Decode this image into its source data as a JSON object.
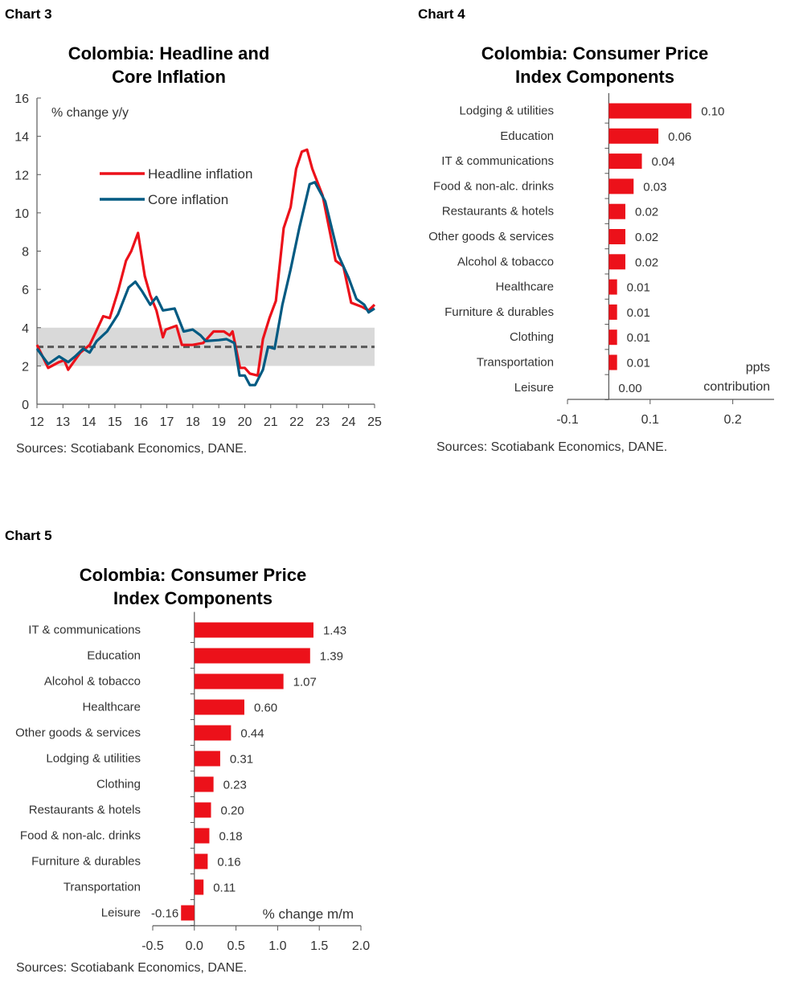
{
  "charts_labels": [
    "Chart 3",
    "Chart 4",
    "Chart 5"
  ],
  "chart_data": [
    {
      "type": "line",
      "title_line1": "Colombia: Headline and",
      "title_line2": "Core Inflation",
      "ylabel": "% change y/y",
      "ylim": [
        0,
        16
      ],
      "yticks": [
        0,
        2,
        4,
        6,
        8,
        10,
        12,
        14,
        16
      ],
      "xlim": [
        12,
        25
      ],
      "xticks": [
        12,
        13,
        14,
        15,
        16,
        17,
        18,
        19,
        20,
        21,
        22,
        23,
        24,
        25
      ],
      "target_band": [
        2,
        4
      ],
      "target_line": 3,
      "band_color": "#d9d9d9",
      "legend_placement": "upper-left inside",
      "source": "Sources: Scotiabank Economics, DANE.",
      "series": [
        {
          "name": "Headline inflation",
          "color": "#ec111a",
          "x": [
            12.0,
            12.43,
            12.85,
            13.05,
            13.2,
            13.67,
            14.03,
            14.24,
            14.55,
            14.8,
            15.12,
            15.43,
            15.63,
            15.89,
            16.15,
            16.36,
            16.6,
            16.85,
            16.96,
            17.37,
            17.58,
            17.99,
            18.4,
            18.8,
            19.2,
            19.42,
            19.53,
            19.82,
            20.0,
            20.2,
            20.5,
            20.7,
            20.95,
            21.2,
            21.5,
            21.77,
            21.98,
            22.2,
            22.4,
            22.6,
            23.0,
            23.5,
            23.8,
            24.1,
            24.5,
            24.77,
            25.0
          ],
          "y": [
            3.1,
            1.9,
            2.2,
            2.3,
            1.8,
            2.7,
            3.1,
            3.7,
            4.6,
            4.5,
            5.9,
            7.5,
            8.0,
            8.95,
            6.7,
            5.7,
            4.9,
            3.5,
            3.9,
            4.1,
            3.1,
            3.1,
            3.2,
            3.8,
            3.8,
            3.6,
            3.8,
            1.9,
            1.9,
            1.6,
            1.5,
            3.4,
            4.5,
            5.4,
            9.2,
            10.3,
            12.3,
            13.2,
            13.3,
            12.3,
            10.9,
            7.5,
            7.2,
            5.3,
            5.1,
            4.9,
            5.2
          ]
        },
        {
          "name": "Core inflation",
          "color": "#005a82",
          "x": [
            12.0,
            12.43,
            12.85,
            13.2,
            13.47,
            13.78,
            14.03,
            14.3,
            14.7,
            15.12,
            15.53,
            15.79,
            16.05,
            16.36,
            16.6,
            16.85,
            17.3,
            17.65,
            18.0,
            18.3,
            18.5,
            19.0,
            19.3,
            19.6,
            19.8,
            20.0,
            20.2,
            20.4,
            20.7,
            20.9,
            21.15,
            21.45,
            21.76,
            22.1,
            22.5,
            22.7,
            23.1,
            23.6,
            24.0,
            24.3,
            24.6,
            24.77,
            25.0
          ],
          "y": [
            2.9,
            2.1,
            2.5,
            2.2,
            2.5,
            2.9,
            2.7,
            3.3,
            3.8,
            4.7,
            6.1,
            6.4,
            5.9,
            5.2,
            5.6,
            4.9,
            5.0,
            3.8,
            3.9,
            3.6,
            3.3,
            3.35,
            3.4,
            3.2,
            1.5,
            1.5,
            1.0,
            1.0,
            1.8,
            3.0,
            2.9,
            5.2,
            7.0,
            9.2,
            11.5,
            11.6,
            10.6,
            7.8,
            6.6,
            5.5,
            5.2,
            4.8,
            5.0
          ]
        }
      ]
    },
    {
      "type": "bar",
      "orientation": "horizontal",
      "title_line1": "Colombia: Consumer Price",
      "title_line2": "Index Components",
      "unit_line1": "ppts",
      "unit_line2": "contribution",
      "xlim": [
        -0.05,
        0.2
      ],
      "tick_labels": [
        "-0.1",
        "0.1",
        "0.2"
      ],
      "color": "#ec111a",
      "categories": [
        "Lodging & utilities",
        "Education",
        "IT & communications",
        "Food & non-alc. drinks",
        "Restaurants & hotels",
        "Other goods & services",
        "Alcohol & tobacco",
        "Healthcare",
        "Furniture & durables",
        "Clothing",
        "Transportation",
        "Leisure"
      ],
      "values": [
        0.1,
        0.06,
        0.04,
        0.03,
        0.02,
        0.02,
        0.02,
        0.01,
        0.01,
        0.01,
        0.01,
        0.0
      ],
      "value_labels": [
        "0.10",
        "0.06",
        "0.04",
        "0.03",
        "0.02",
        "0.02",
        "0.02",
        "0.01",
        "0.01",
        "0.01",
        "0.01",
        "0.00"
      ],
      "source": "Sources: Scotiabank Economics, DANE."
    },
    {
      "type": "bar",
      "orientation": "horizontal",
      "title_line1": "Colombia: Consumer Price",
      "title_line2": "Index Components",
      "unit": "% change m/m",
      "xlim": [
        -0.5,
        2.0
      ],
      "tick_labels": [
        "-0.5",
        "0.0",
        "0.5",
        "1.0",
        "1.5",
        "2.0"
      ],
      "color": "#ec111a",
      "categories": [
        "IT & communications",
        "Education",
        "Alcohol & tobacco",
        "Healthcare",
        "Other goods & services",
        "Lodging & utilities",
        "Clothing",
        "Restaurants & hotels",
        "Food & non-alc. drinks",
        "Furniture & durables",
        "Transportation",
        "Leisure"
      ],
      "values": [
        1.43,
        1.39,
        1.07,
        0.6,
        0.44,
        0.31,
        0.23,
        0.2,
        0.18,
        0.16,
        0.11,
        -0.16
      ],
      "value_labels": [
        "1.43",
        "1.39",
        "1.07",
        "0.60",
        "0.44",
        "0.31",
        "0.23",
        "0.20",
        "0.18",
        "0.16",
        "0.11",
        "-0.16"
      ],
      "source": "Sources: Scotiabank Economics, DANE."
    }
  ]
}
